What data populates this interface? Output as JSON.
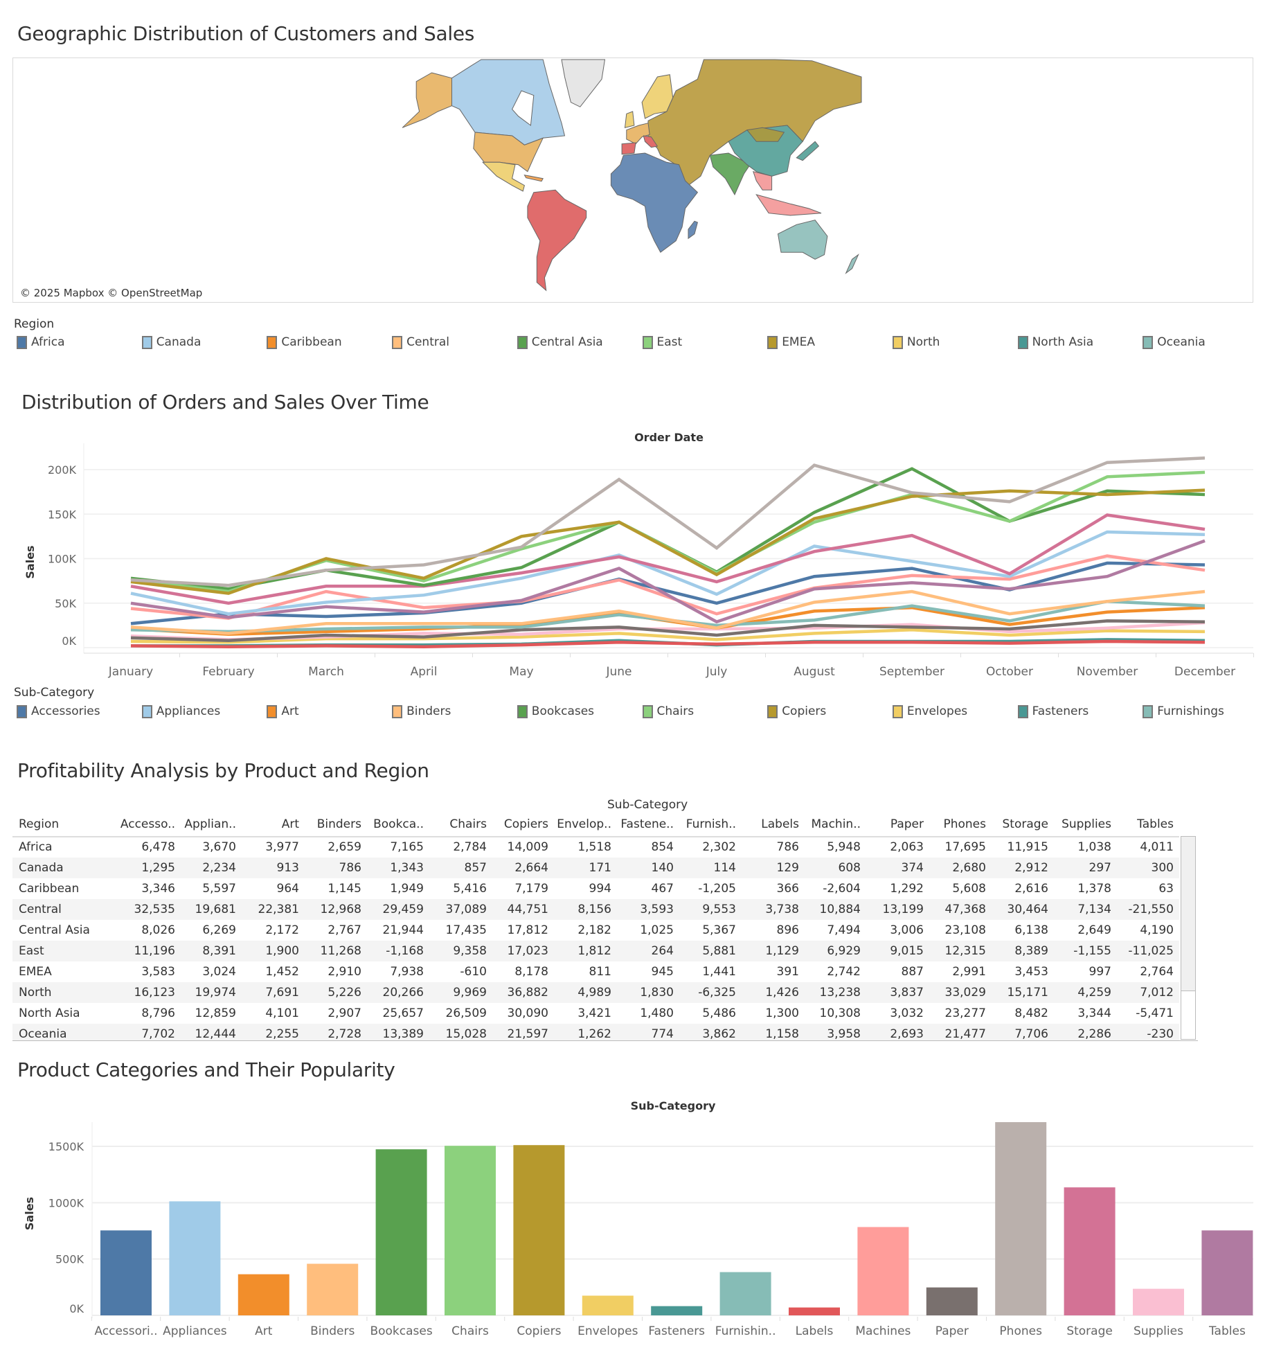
{
  "sections": {
    "map_title": "Geographic Distribution of Customers and Sales",
    "line_title": "Distribution of Orders and Sales Over Time",
    "table_title": "Profitability Analysis by Product and Region",
    "bar_title": "Product Categories and Their Popularity"
  },
  "map": {
    "attribution": "© 2025 Mapbox © OpenStreetMap",
    "region_colors": {
      "Africa": "#6a8cb5",
      "Canada": "#aed0ea",
      "Caribbean": "#f2a65a",
      "Central": "#e9b96f",
      "Central Asia": "#6aaa64",
      "East": "#f4a0a0",
      "EMEA": "#bfa34e",
      "North": "#efd37a",
      "North Asia": "#63a8a0",
      "Oceania": "#97c3bf",
      "South America": "#e06c6c"
    }
  },
  "region_legend": {
    "title": "Region",
    "items": [
      {
        "label": "Africa",
        "color": "#4e79a7"
      },
      {
        "label": "Canada",
        "color": "#a0cbe8"
      },
      {
        "label": "Caribbean",
        "color": "#f28e2b"
      },
      {
        "label": "Central",
        "color": "#ffbe7d"
      },
      {
        "label": "Central Asia",
        "color": "#59a14f"
      },
      {
        "label": "East",
        "color": "#8cd17d"
      },
      {
        "label": "EMEA",
        "color": "#b6992d"
      },
      {
        "label": "North",
        "color": "#f1ce63"
      },
      {
        "label": "North Asia",
        "color": "#499894"
      },
      {
        "label": "Oceania",
        "color": "#86bcb6"
      }
    ]
  },
  "subcat_legend": {
    "title": "Sub-Category",
    "items": [
      {
        "label": "Accessories",
        "color": "#4e79a7"
      },
      {
        "label": "Appliances",
        "color": "#a0cbe8"
      },
      {
        "label": "Art",
        "color": "#f28e2b"
      },
      {
        "label": "Binders",
        "color": "#ffbe7d"
      },
      {
        "label": "Bookcases",
        "color": "#59a14f"
      },
      {
        "label": "Chairs",
        "color": "#8cd17d"
      },
      {
        "label": "Copiers",
        "color": "#b6992d"
      },
      {
        "label": "Envelopes",
        "color": "#f1ce63"
      },
      {
        "label": "Fasteners",
        "color": "#499894"
      },
      {
        "label": "Furnishings",
        "color": "#86bcb6"
      }
    ]
  },
  "chart_data": [
    {
      "type": "line",
      "title": "",
      "xlabel": "Order Date",
      "ylabel": "Sales",
      "ylim": [
        0,
        220000
      ],
      "y_ticks": [
        0,
        50000,
        100000,
        150000,
        200000
      ],
      "y_tick_labels": [
        "0K",
        "50K",
        "100K",
        "150K",
        "200K"
      ],
      "grid": true,
      "x": [
        "January",
        "February",
        "March",
        "April",
        "May",
        "June",
        "July",
        "August",
        "September",
        "October",
        "November",
        "December"
      ],
      "series": [
        {
          "name": "Phones",
          "color": "#bab0ac",
          "values": [
            76000,
            70000,
            87000,
            93000,
            113000,
            189000,
            112000,
            205000,
            174000,
            164000,
            208000,
            213000
          ]
        },
        {
          "name": "Copiers",
          "color": "#b6992d",
          "values": [
            74000,
            61000,
            100000,
            78000,
            125000,
            141000,
            82000,
            145000,
            170000,
            176000,
            172000,
            177000
          ]
        },
        {
          "name": "Chairs",
          "color": "#8cd17d",
          "values": [
            76000,
            63000,
            98000,
            75000,
            111000,
            141000,
            84000,
            141000,
            172000,
            142000,
            192000,
            197000
          ]
        },
        {
          "name": "Bookcases",
          "color": "#59a14f",
          "values": [
            78000,
            66000,
            87000,
            70000,
            90000,
            141000,
            85000,
            152000,
            201000,
            142000,
            176000,
            172000
          ]
        },
        {
          "name": "Storage",
          "color": "#d37295",
          "values": [
            69000,
            50000,
            69000,
            69000,
            84000,
            102000,
            74000,
            108000,
            126000,
            83000,
            149000,
            133000
          ]
        },
        {
          "name": "Appliances",
          "color": "#a0cbe8",
          "values": [
            61000,
            38000,
            51000,
            59000,
            78000,
            104000,
            60000,
            114000,
            97000,
            80000,
            130000,
            127000
          ]
        },
        {
          "name": "Tables",
          "color": "#b07aa1",
          "values": [
            50000,
            34000,
            46000,
            40000,
            53000,
            89000,
            29000,
            66000,
            73000,
            66000,
            80000,
            120000
          ]
        },
        {
          "name": "Machines",
          "color": "#ff9d9a",
          "values": [
            44000,
            33000,
            63000,
            45000,
            52000,
            76000,
            38000,
            67000,
            81000,
            77000,
            103000,
            87000
          ]
        },
        {
          "name": "Accessories",
          "color": "#4e79a7",
          "values": [
            27000,
            38000,
            35000,
            39000,
            50000,
            77000,
            50000,
            80000,
            89000,
            65000,
            95000,
            93000
          ]
        },
        {
          "name": "Binders",
          "color": "#ffbe7d",
          "values": [
            23000,
            16000,
            27000,
            27000,
            27000,
            41000,
            22000,
            51000,
            63000,
            38000,
            52000,
            63000
          ]
        },
        {
          "name": "Furnishings",
          "color": "#86bcb6",
          "values": [
            20000,
            18000,
            21000,
            23000,
            23000,
            37000,
            25000,
            31000,
            47000,
            30000,
            52000,
            47000
          ]
        },
        {
          "name": "Art",
          "color": "#f28e2b",
          "values": [
            21000,
            15000,
            18000,
            21000,
            26000,
            38000,
            22000,
            41000,
            45000,
            26000,
            40000,
            45000
          ]
        },
        {
          "name": "Paper",
          "color": "#79706e",
          "values": [
            11000,
            8000,
            14000,
            12000,
            20000,
            23000,
            14000,
            25000,
            23000,
            21000,
            30000,
            29000
          ]
        },
        {
          "name": "Supplies",
          "color": "#fabfd2",
          "values": [
            13000,
            9000,
            12000,
            16000,
            15000,
            21000,
            21000,
            22000,
            26000,
            18000,
            22000,
            28000
          ]
        },
        {
          "name": "Envelopes",
          "color": "#f1ce63",
          "values": [
            7000,
            6000,
            10000,
            10000,
            12000,
            16000,
            9000,
            16000,
            20000,
            14000,
            19000,
            18000
          ]
        },
        {
          "name": "Labels",
          "color": "#e15759",
          "values": [
            2000,
            1000,
            2000,
            1000,
            3000,
            6000,
            4000,
            6000,
            6000,
            5000,
            7000,
            6000
          ]
        },
        {
          "name": "Fasteners",
          "color": "#499894",
          "values": [
            2000,
            2000,
            3000,
            3000,
            4000,
            8000,
            3000,
            7000,
            7000,
            7000,
            9000,
            8000
          ]
        }
      ]
    },
    {
      "type": "bar",
      "title": "",
      "xlabel": "Sub-Category",
      "ylabel": "Sales",
      "ylim": [
        0,
        1800000
      ],
      "y_ticks": [
        0,
        500000,
        1000000,
        1500000
      ],
      "y_tick_labels": [
        "0K",
        "500K",
        "1000K",
        "1500K"
      ],
      "grid": true,
      "categories": [
        "Accessori..",
        "Appliances",
        "Art",
        "Binders",
        "Bookcases",
        "Chairs",
        "Copiers",
        "Envelopes",
        "Fasteners",
        "Furnishin..",
        "Labels",
        "Machines",
        "Paper",
        "Phones",
        "Storage",
        "Supplies",
        "Tables"
      ],
      "colors": [
        "#4e79a7",
        "#a0cbe8",
        "#f28e2b",
        "#ffbe7d",
        "#59a14f",
        "#8cd17d",
        "#b6992d",
        "#f1ce63",
        "#499894",
        "#86bcb6",
        "#e15759",
        "#ff9d9a",
        "#79706e",
        "#bab0ac",
        "#d37295",
        "#fabfd2",
        "#b07aa1"
      ],
      "values": [
        754000,
        1012000,
        365000,
        458000,
        1474000,
        1505000,
        1511000,
        175000,
        82000,
        384000,
        70000,
        784000,
        248000,
        1715000,
        1136000,
        236000,
        754000
      ]
    }
  ],
  "table": {
    "column_group": "Sub-Category",
    "row_header": "Region",
    "columns": [
      "Accesso..",
      "Applian..",
      "Art",
      "Binders",
      "Bookca..",
      "Chairs",
      "Copiers",
      "Envelop..",
      "Fastene..",
      "Furnish..",
      "Labels",
      "Machin..",
      "Paper",
      "Phones",
      "Storage",
      "Supplies",
      "Tables"
    ],
    "rows": [
      {
        "region": "Africa",
        "values": [
          "6,478",
          "3,670",
          "3,977",
          "2,659",
          "7,165",
          "2,784",
          "14,009",
          "1,518",
          "854",
          "2,302",
          "786",
          "5,948",
          "2,063",
          "17,695",
          "11,915",
          "1,038",
          "4,011"
        ]
      },
      {
        "region": "Canada",
        "values": [
          "1,295",
          "2,234",
          "913",
          "786",
          "1,343",
          "857",
          "2,664",
          "171",
          "140",
          "114",
          "129",
          "608",
          "374",
          "2,680",
          "2,912",
          "297",
          "300"
        ]
      },
      {
        "region": "Caribbean",
        "values": [
          "3,346",
          "5,597",
          "964",
          "1,145",
          "1,949",
          "5,416",
          "7,179",
          "994",
          "467",
          "-1,205",
          "366",
          "-2,604",
          "1,292",
          "5,608",
          "2,616",
          "1,378",
          "63"
        ]
      },
      {
        "region": "Central",
        "values": [
          "32,535",
          "19,681",
          "22,381",
          "12,968",
          "29,459",
          "37,089",
          "44,751",
          "8,156",
          "3,593",
          "9,553",
          "3,738",
          "10,884",
          "13,199",
          "47,368",
          "30,464",
          "7,134",
          "-21,550"
        ]
      },
      {
        "region": "Central Asia",
        "values": [
          "8,026",
          "6,269",
          "2,172",
          "2,767",
          "21,944",
          "17,435",
          "17,812",
          "2,182",
          "1,025",
          "5,367",
          "896",
          "7,494",
          "3,006",
          "23,108",
          "6,138",
          "2,649",
          "4,190"
        ]
      },
      {
        "region": "East",
        "values": [
          "11,196",
          "8,391",
          "1,900",
          "11,268",
          "-1,168",
          "9,358",
          "17,023",
          "1,812",
          "264",
          "5,881",
          "1,129",
          "6,929",
          "9,015",
          "12,315",
          "8,389",
          "-1,155",
          "-11,025"
        ]
      },
      {
        "region": "EMEA",
        "values": [
          "3,583",
          "3,024",
          "1,452",
          "2,910",
          "7,938",
          "-610",
          "8,178",
          "811",
          "945",
          "1,441",
          "391",
          "2,742",
          "887",
          "2,991",
          "3,453",
          "997",
          "2,764"
        ]
      },
      {
        "region": "North",
        "values": [
          "16,123",
          "19,974",
          "7,691",
          "5,226",
          "20,266",
          "9,969",
          "36,882",
          "4,989",
          "1,830",
          "-6,325",
          "1,426",
          "13,238",
          "3,837",
          "33,029",
          "15,171",
          "4,259",
          "7,012"
        ]
      },
      {
        "region": "North Asia",
        "values": [
          "8,796",
          "12,859",
          "4,101",
          "2,907",
          "25,657",
          "26,509",
          "30,090",
          "3,421",
          "1,480",
          "5,486",
          "1,300",
          "10,308",
          "3,032",
          "23,277",
          "8,482",
          "3,344",
          "-5,471"
        ]
      },
      {
        "region": "Oceania",
        "values": [
          "7,702",
          "12,444",
          "2,255",
          "2,728",
          "13,389",
          "15,028",
          "21,597",
          "1,262",
          "774",
          "3,862",
          "1,158",
          "3,958",
          "2,693",
          "21,477",
          "7,706",
          "2,286",
          "-230"
        ]
      }
    ]
  }
}
